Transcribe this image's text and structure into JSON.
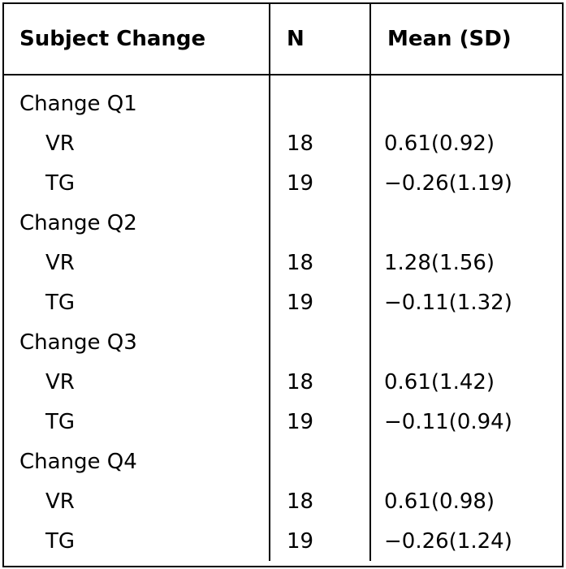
{
  "table": {
    "headers": [
      "Subject Change",
      "N",
      "Mean (SD)"
    ],
    "groups": [
      {
        "label": "Change Q1",
        "rows": [
          {
            "group": "VR",
            "n": "18",
            "mean_sd": "0.61(0.92)"
          },
          {
            "group": "TG",
            "n": "19",
            "mean_sd": "−0.26(1.19)"
          }
        ]
      },
      {
        "label": "Change Q2",
        "rows": [
          {
            "group": "VR",
            "n": "18",
            "mean_sd": "1.28(1.56)"
          },
          {
            "group": "TG",
            "n": "19",
            "mean_sd": "−0.11(1.32)"
          }
        ]
      },
      {
        "label": "Change Q3",
        "rows": [
          {
            "group": "VR",
            "n": "18",
            "mean_sd": "0.61(1.42)"
          },
          {
            "group": "TG",
            "n": "19",
            "mean_sd": "−0.11(0.94)"
          }
        ]
      },
      {
        "label": "Change Q4",
        "rows": [
          {
            "group": "VR",
            "n": "18",
            "mean_sd": "0.61(0.98)"
          },
          {
            "group": "TG",
            "n": "19",
            "mean_sd": "−0.26(1.24)"
          }
        ]
      }
    ]
  }
}
